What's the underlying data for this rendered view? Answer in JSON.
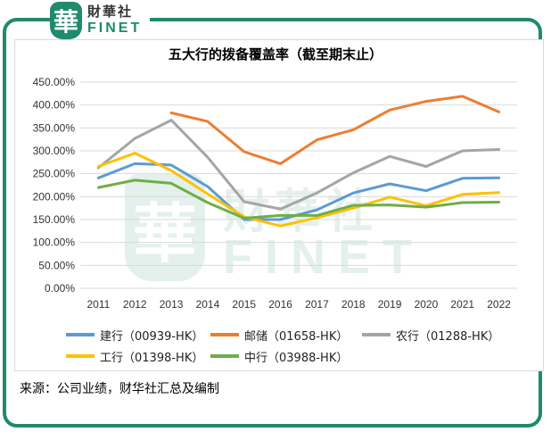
{
  "logo": {
    "mark": "華",
    "cn": "財華社",
    "en": "FINET"
  },
  "watermark": {
    "mark": "華",
    "cn": "財華社",
    "en": "FINET"
  },
  "source": "来源：公司业绩，财华社汇总及编制",
  "chart_data": {
    "type": "line",
    "title": "五大行的拨备覆盖率（截至期末止）",
    "xlabel": "",
    "ylabel": "",
    "categories": [
      "2011",
      "2012",
      "2013",
      "2014",
      "2015",
      "2016",
      "2017",
      "2018",
      "2019",
      "2020",
      "2021",
      "2022"
    ],
    "ylim": [
      0,
      450
    ],
    "yticks": [
      0,
      50,
      100,
      150,
      200,
      250,
      300,
      350,
      400,
      450
    ],
    "ytick_labels": [
      "0.00%",
      "50.00%",
      "100.00%",
      "150.00%",
      "200.00%",
      "250.00%",
      "300.00%",
      "350.00%",
      "400.00%",
      "450.00%"
    ],
    "grid": true,
    "legend_position": "bottom",
    "series": [
      {
        "name": "建行（00939-HK）",
        "color": "#5b9bd5",
        "values": [
          241,
          272,
          269,
          222,
          150,
          150,
          171,
          208,
          228,
          213,
          240,
          241
        ]
      },
      {
        "name": "邮储（01658-HK）",
        "color": "#ed7d31",
        "values": [
          null,
          null,
          383,
          364,
          298,
          272,
          324,
          346,
          389,
          408,
          419,
          385
        ]
      },
      {
        "name": "农行（01288-HK）",
        "color": "#a5a5a5",
        "values": [
          263,
          327,
          367,
          286,
          189,
          173,
          208,
          252,
          288,
          266,
          300,
          303
        ]
      },
      {
        "name": "工行（01398-HK）",
        "color": "#ffc000",
        "values": [
          266,
          295,
          257,
          206,
          156,
          136,
          154,
          175,
          199,
          180,
          205,
          209
        ]
      },
      {
        "name": "中行（03988-HK）",
        "color": "#70ad47",
        "values": [
          220,
          236,
          229,
          187,
          153,
          159,
          159,
          181,
          182,
          177,
          187,
          188
        ]
      }
    ]
  }
}
